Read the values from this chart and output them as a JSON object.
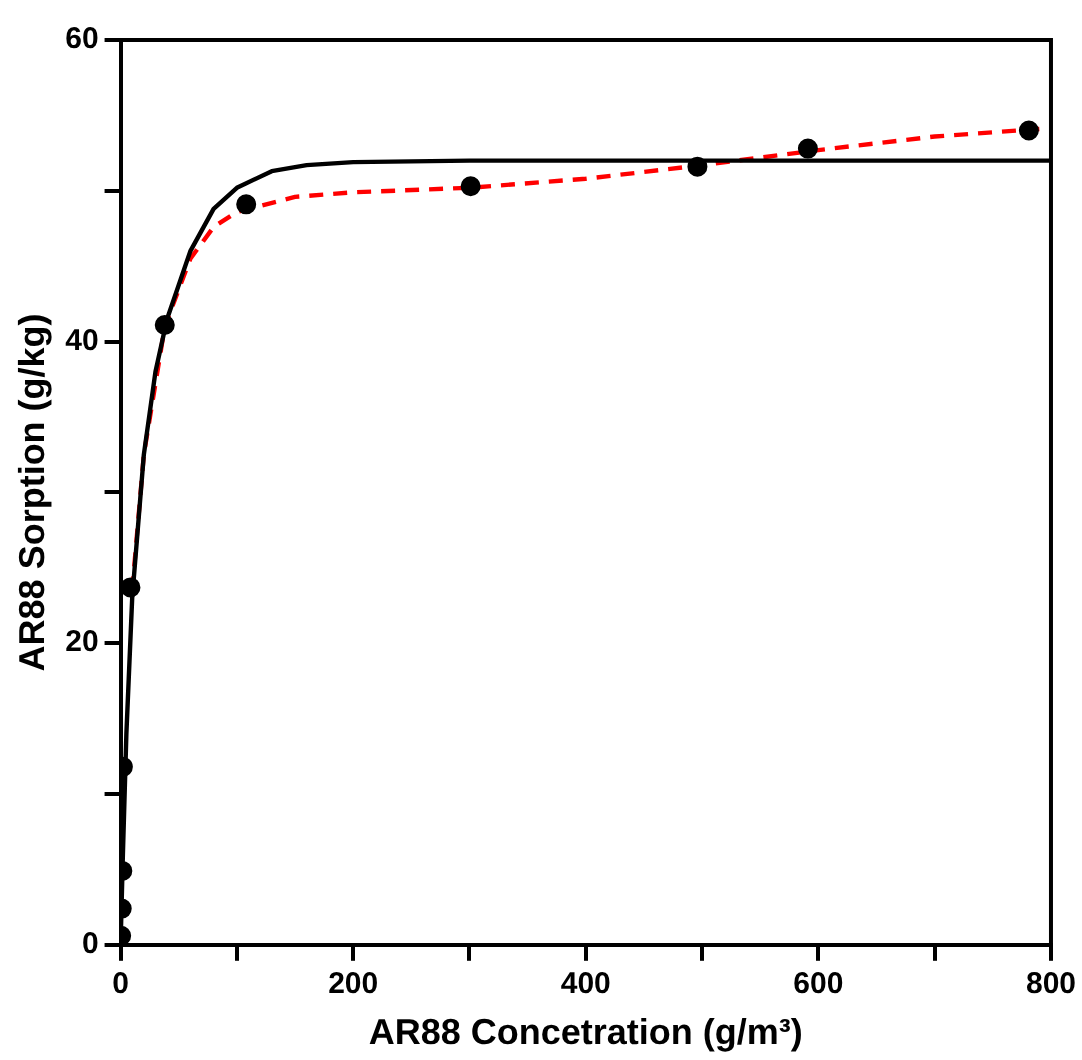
{
  "chart_data": {
    "type": "scatter",
    "xlabel": "AR88 Concetration (g/m³)",
    "ylabel": "AR88 Sorption (g/kg)",
    "xlim": [
      0,
      800
    ],
    "xticks": [
      0,
      {
        "value": 100,
        "label": null
      },
      200,
      {
        "value": 300,
        "label": null
      },
      400,
      {
        "value": 500,
        "label": null
      },
      600,
      {
        "value": 700,
        "label": null
      },
      800
    ],
    "ylim": [
      0,
      60
    ],
    "yticks": [
      0,
      {
        "value": 10,
        "label": null
      },
      20,
      {
        "value": 30,
        "label": null
      },
      40,
      {
        "value": 50,
        "label": null
      },
      60
    ],
    "grid": false,
    "legend": false,
    "series": [
      {
        "type": "line",
        "color": "#000000",
        "line_style": "solid",
        "marker": "none",
        "x": [
          0,
          2,
          5,
          10,
          20,
          30,
          40,
          60,
          80,
          100,
          130,
          160,
          200,
          300,
          500,
          800
        ],
        "values": [
          0,
          6,
          14,
          23,
          32.5,
          38,
          41.5,
          46,
          48.8,
          50.2,
          51.3,
          51.7,
          51.9,
          52,
          52,
          52
        ]
      },
      {
        "type": "line",
        "color": "#ff0000",
        "line_style": "dashed",
        "marker": "none",
        "x": [
          10,
          20,
          38,
          60,
          80,
          100,
          150,
          200,
          300,
          400,
          500,
          600,
          700,
          790
        ],
        "values": [
          23.5,
          32.5,
          41,
          45.5,
          47.6,
          48.6,
          49.6,
          49.9,
          50.2,
          50.8,
          51.7,
          52.7,
          53.6,
          54.1
        ]
      },
      {
        "type": "scatter",
        "color": "#000000",
        "marker": "circle",
        "x": [
          0.5,
          1,
          1.5,
          2,
          8.5,
          38,
          108,
          301,
          496,
          591,
          781
        ],
        "values": [
          0.6,
          2.4,
          4.9,
          11.8,
          23.7,
          41.1,
          49.1,
          50.3,
          51.6,
          52.8,
          54.0
        ]
      }
    ]
  }
}
